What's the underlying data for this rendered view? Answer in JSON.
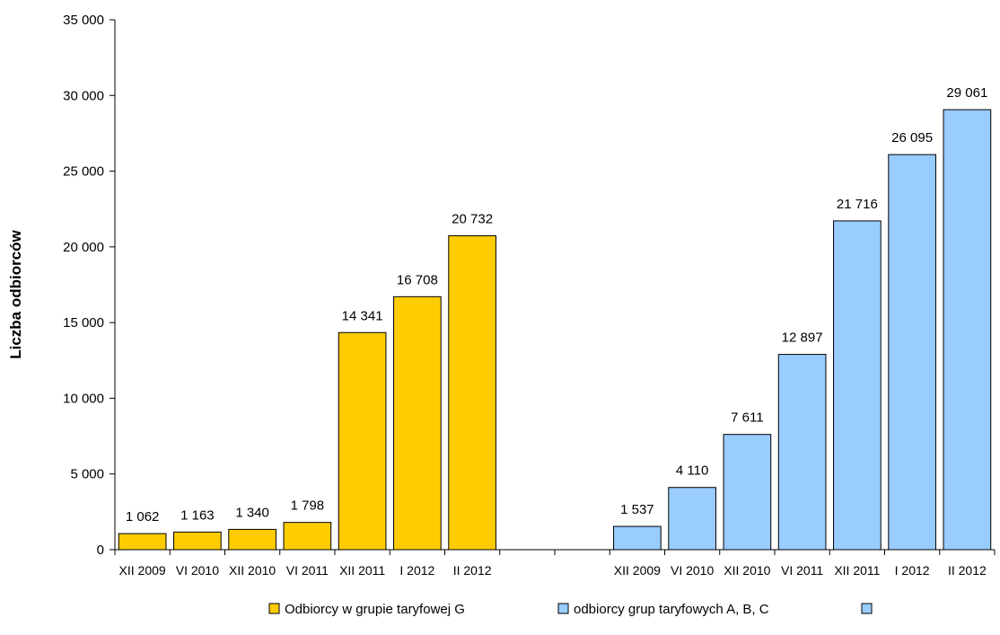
{
  "chart_data": {
    "type": "bar",
    "ylabel": "Liczba odbiorców",
    "ylim": [
      0,
      35000
    ],
    "yticks": [
      0,
      5000,
      10000,
      15000,
      20000,
      25000,
      30000,
      35000
    ],
    "ytick_labels": [
      "0",
      "5 000",
      "10 000",
      "15 000",
      "20 000",
      "25 000",
      "30 000",
      "35 000"
    ],
    "grid": false,
    "legend_position": "bottom",
    "groups": [
      {
        "name": "Odbiorcy w grupie taryfowej G",
        "color": "#FFCC00",
        "categories": [
          "XII 2009",
          "VI 2010",
          "XII 2010",
          "VI 2011",
          "XII 2011",
          "I 2012",
          "II 2012"
        ],
        "values": [
          1062,
          1163,
          1340,
          1798,
          14341,
          16708,
          20732
        ],
        "labels": [
          "1 062",
          "1 163",
          "1 340",
          "1 798",
          "14 341",
          "16 708",
          "20 732"
        ]
      },
      {
        "name": "odbiorcy grup taryfowych A, B, C",
        "color": "#99CCFF",
        "categories": [
          "XII 2009",
          "VI 2010",
          "XII 2010",
          "VI 2011",
          "XII 2011",
          "I 2012",
          "II 2012"
        ],
        "values": [
          1537,
          4110,
          7611,
          12897,
          21716,
          26095,
          29061
        ],
        "labels": [
          "1 537",
          "4 110",
          "7 611",
          "12 897",
          "21 716",
          "26 095",
          "29 061"
        ]
      }
    ],
    "legend": [
      {
        "label": "Odbiorcy w grupie taryfowej G",
        "color": "#FFCC00"
      },
      {
        "label": "odbiorcy grup taryfowych A, B, C",
        "color": "#99CCFF"
      },
      {
        "label": "",
        "color": "#99CCFF"
      }
    ]
  }
}
